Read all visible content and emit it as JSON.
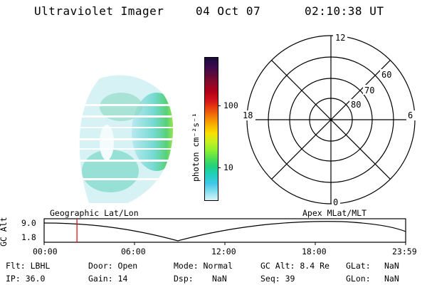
{
  "header": {
    "title": "Ultraviolet Imager",
    "date": "04 Oct 07",
    "time": "02:10:38 UT"
  },
  "colorbar": {
    "label": "photon cm⁻²s⁻¹",
    "ticks": [
      "100",
      "10"
    ],
    "colors": [
      "#1a0a3a",
      "#3a0a4e",
      "#5a0a3a",
      "#8a0a2a",
      "#b00018",
      "#d0101a",
      "#e84010",
      "#f07a08",
      "#f8b000",
      "#f8e000",
      "#c8f020",
      "#90f030",
      "#50e050",
      "#20d080",
      "#20d0c0",
      "#40c8e8",
      "#88e0f0",
      "#d8f4f8"
    ]
  },
  "polar": {
    "mlt_labels": {
      "top": "12",
      "left": "18",
      "right": "6",
      "bottom": "0"
    },
    "lat_labels": [
      "60",
      "70",
      "80"
    ]
  },
  "timeline": {
    "ylabel": "GC Alt",
    "y_ticks": [
      "9.0",
      "1.8"
    ],
    "left_label": "Geographic Lat/Lon",
    "right_label": "Apex MLat/MLT",
    "x_ticks": [
      "00:00",
      "06:00",
      "12:00",
      "18:00",
      "23:59"
    ],
    "marker_time_hours": 2.18,
    "marker_color": "#e00000"
  },
  "info": {
    "filter": "Flt: LBHL",
    "door": "Door: Open",
    "mode": "Mode: Normal",
    "gc_alt": "GC Alt: 8.4 Re",
    "glat_label": "GLat:",
    "glat_value": "NaN",
    "ip": "IP: 36.0",
    "gain": "Gain: 14",
    "dsp_label": "Dsp:",
    "dsp_value": "NaN",
    "seq": "Seq: 39",
    "glon_label": "GLon:",
    "glon_value": "NaN"
  }
}
